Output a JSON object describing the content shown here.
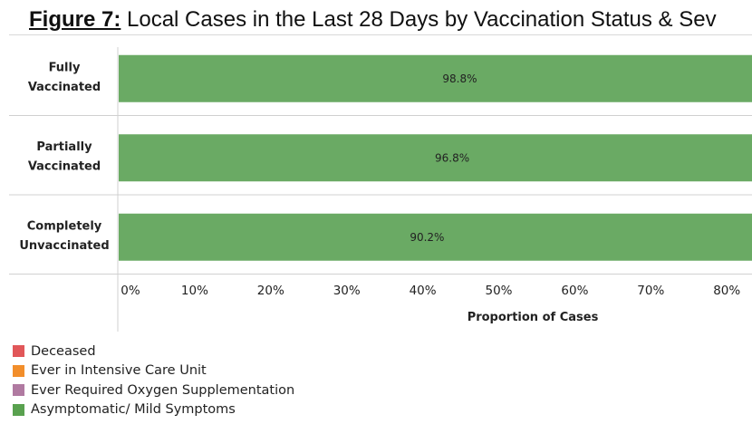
{
  "title": {
    "figure_label": "Figure 7:",
    "text": " Local Cases in the Last 28 Days by Vaccination Status & Sev"
  },
  "chart_data": {
    "type": "bar",
    "orientation": "horizontal",
    "stacked": true,
    "categories": [
      [
        "Fully",
        "Vaccinated"
      ],
      [
        "Partially",
        "Vaccinated"
      ],
      [
        "Completely",
        "Unvaccinated"
      ]
    ],
    "series": [
      {
        "name": "Asymptomatic/ Mild Symptoms",
        "color": "#6aaa64",
        "values": [
          98.8,
          96.8,
          90.2
        ],
        "labels": [
          "98.8%",
          "96.8%",
          "90.2%"
        ]
      }
    ],
    "xlabel": "Proportion of Cases",
    "xlim": [
      0,
      100
    ],
    "xticks": [
      0,
      10,
      20,
      30,
      40,
      50,
      60,
      70,
      80
    ],
    "xtick_labels": [
      "0%",
      "10%",
      "20%",
      "30%",
      "40%",
      "50%",
      "60%",
      "70%",
      "80%"
    ]
  },
  "legend": [
    {
      "label": "Deceased",
      "color": "#e15759"
    },
    {
      "label": "Ever in Intensive Care Unit",
      "color": "#f28e2b"
    },
    {
      "label": "Ever Required Oxygen Supplementation",
      "color": "#b07aa1"
    },
    {
      "label": "Asymptomatic/ Mild Symptoms",
      "color": "#59a14f"
    }
  ]
}
